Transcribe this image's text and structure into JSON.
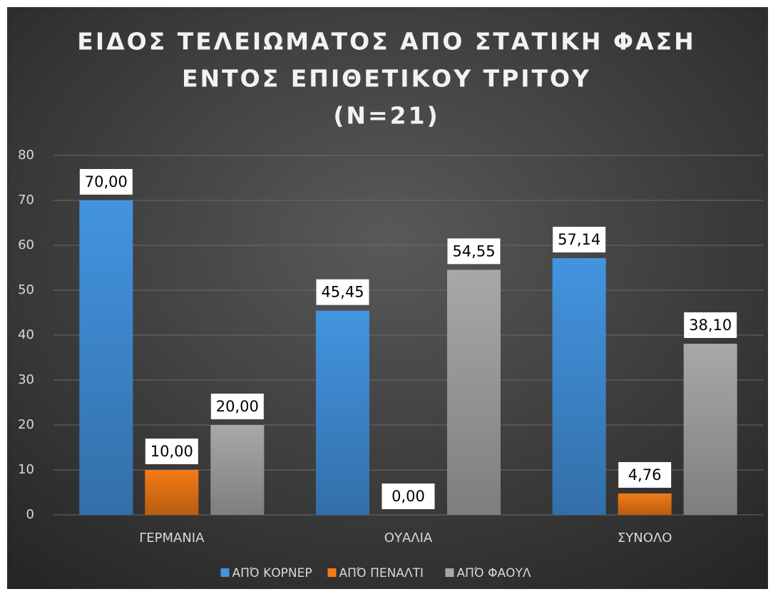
{
  "chart_data": {
    "type": "bar",
    "title": [
      "ΕΙΔΟΣ ΤΕΛΕΙΩΜΑΤΟΣ ΑΠΟ ΣΤΑΤΙΚΗ ΦΑΣΗ",
      "ΕΝΤΟΣ ΕΠΙΘΕΤΙΚΟΥ ΤΡΙΤΟΥ",
      "(N=21)"
    ],
    "categories": [
      "ΓΕΡΜΑΝΙΑ",
      "ΟΥΑΛΙΑ",
      "ΣΥΝΟΛΟ"
    ],
    "series": [
      {
        "name": "ΑΠΌ ΚΟΡΝΕΡ",
        "color": "#4394e0",
        "values": [
          70,
          45.45,
          57.14
        ],
        "value_labels": [
          "70,00",
          "45,45",
          "57,14"
        ]
      },
      {
        "name": "ΑΠΌ ΠΕΝΑΛΤΙ",
        "color": "#f47b16",
        "values": [
          10,
          0,
          4.76
        ],
        "value_labels": [
          "10,00",
          "0,00",
          "4,76"
        ]
      },
      {
        "name": "ΑΠΌ ΦΑΟΥΛ",
        "color": "#a8a8a8",
        "values": [
          20,
          54.55,
          38.1
        ],
        "value_labels": [
          "20,00",
          "54,55",
          "38,10"
        ]
      }
    ],
    "ylim": [
      0,
      80
    ],
    "yticks": [
      0,
      10,
      20,
      30,
      40,
      50,
      60,
      70,
      80
    ],
    "grid": true,
    "legend": "bottom"
  }
}
